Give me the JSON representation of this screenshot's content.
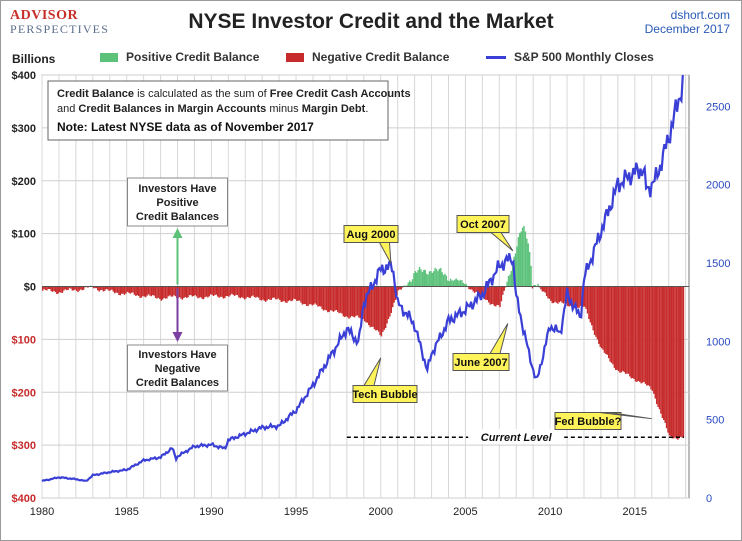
{
  "header": {
    "logo_line1": "ADVISOR",
    "logo_line2": "PERSPECTIVES",
    "title": "NYSE Investor Credit and the Market",
    "source": "dshort.com",
    "date": "December 2017"
  },
  "colors": {
    "positive": "#5cc27a",
    "negative": "#c72a2a",
    "line": "#3a3fd6",
    "callout_fill": "#fff35a"
  },
  "chart_data": {
    "type": "bar",
    "title": "NYSE Investor Credit and the Market",
    "ylabel": "Billions",
    "y_left_ticks": [
      "$400",
      "$300",
      "$200",
      "$100",
      "$0",
      "$100",
      "$200",
      "$300",
      "$400"
    ],
    "y_left_range": [
      -400,
      400
    ],
    "y_right_ticks": [
      "2500",
      "2000",
      "1500",
      "1000",
      "500",
      "0"
    ],
    "y_right_range": [
      0,
      2700
    ],
    "x_ticks": [
      "1980",
      "1985",
      "1990",
      "1995",
      "2000",
      "2005",
      "2010",
      "2015"
    ],
    "x_range": [
      1980,
      2018.2
    ],
    "grid": true,
    "legend": {
      "position": "top",
      "entries": [
        "Positive Credit Balance",
        "Negative Credit Balance",
        "S&P 500 Monthly Closes"
      ]
    },
    "series": [
      {
        "name": "Credit Balance (Billions, annual approx.)",
        "x": [
          1980,
          1981,
          1982,
          1983,
          1984,
          1985,
          1986,
          1987,
          1988,
          1989,
          1990,
          1991,
          1992,
          1993,
          1994,
          1995,
          1996,
          1997,
          1998,
          1999,
          2000,
          2001,
          2002,
          2003,
          2004,
          2005,
          2006,
          2007,
          2008,
          2009,
          2010,
          2011,
          2012,
          2013,
          2014,
          2015,
          2016,
          2017
        ],
        "values": [
          -8,
          -10,
          -6,
          -2,
          -10,
          -14,
          -18,
          -22,
          -20,
          -20,
          -19,
          -18,
          -20,
          -24,
          -26,
          -28,
          -36,
          -46,
          -56,
          -62,
          -95,
          -12,
          25,
          33,
          18,
          4,
          -22,
          -40,
          78,
          5,
          -26,
          -36,
          -40,
          -120,
          -160,
          -175,
          -195,
          -285
        ]
      },
      {
        "name": "S&P 500 Monthly Closes",
        "x": [
          1980,
          1981,
          1982,
          1982.6,
          1983,
          1984,
          1985,
          1986,
          1987,
          1987.7,
          1987.9,
          1988,
          1989,
          1990,
          1990.8,
          1991,
          1992,
          1993,
          1994,
          1995,
          1996,
          1997,
          1998,
          1998.7,
          1999,
          2000,
          2000.7,
          2001,
          2001.8,
          2002,
          2002.75,
          2003,
          2004,
          2005,
          2006,
          2007,
          2007.8,
          2008,
          2008.8,
          2009.2,
          2010,
          2010.6,
          2011,
          2011.8,
          2012,
          2013,
          2014,
          2015,
          2015.5,
          2015.7,
          2016,
          2016.3,
          2017,
          2017.9
        ],
        "values": [
          108,
          132,
          120,
          108,
          145,
          165,
          180,
          240,
          260,
          320,
          250,
          265,
          330,
          340,
          315,
          370,
          410,
          450,
          460,
          560,
          720,
          900,
          1080,
          990,
          1250,
          1460,
          1480,
          1240,
          1140,
          1100,
          815,
          920,
          1130,
          1200,
          1300,
          1480,
          1540,
          1280,
          900,
          740,
          1100,
          1050,
          1300,
          1150,
          1400,
          1700,
          2000,
          2080,
          2100,
          1960,
          2000,
          2050,
          2300,
          2670
        ]
      }
    ],
    "annotations": [
      {
        "text": "Aug 2000",
        "x": 2000.6,
        "y_sp": 1485
      },
      {
        "text": "Oct 2007",
        "x": 2007.8,
        "y_sp": 1565
      },
      {
        "text": "Tech Bubble",
        "x": 2000.0,
        "y_credit": -135
      },
      {
        "text": "June 2007",
        "x": 2007.5,
        "y_credit": -70
      },
      {
        "text": "Fed Bubble?",
        "x": 2016.0,
        "y_credit": -250
      },
      {
        "text": "Current Level",
        "x": 2008.0,
        "y_credit": -285
      }
    ]
  },
  "notes": {
    "box_line1_a": "Credit Balance",
    "box_line1_b": " is calculated as the sum of ",
    "box_line1_c": "Free Credit Cash Accounts",
    "box_line2_a": "and ",
    "box_line2_b": "Credit Balances in Margin Accounts",
    "box_line2_c": " minus ",
    "box_line2_d": "Margin Debt",
    "box_line2_e": ".",
    "box_line3": "Note: Latest NYSE data as of November 2017",
    "positive_label": [
      "Investors Have",
      "Positive",
      "Credit Balances"
    ],
    "negative_label": [
      "Investors Have",
      "Negative",
      "Credit Balances"
    ]
  }
}
